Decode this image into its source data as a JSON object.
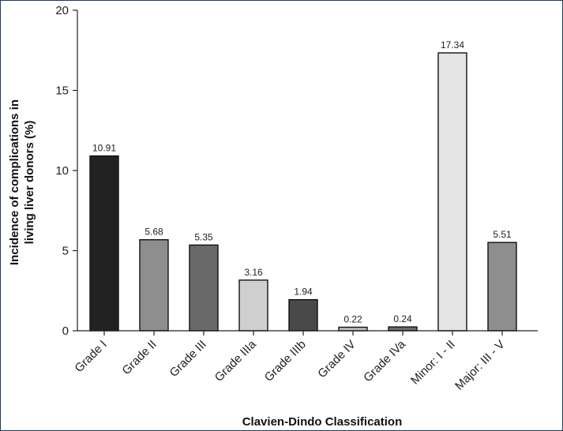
{
  "chart_data": {
    "type": "bar",
    "title": "",
    "xlabel": "Clavien-Dindo Classification",
    "ylabel_lines": [
      "Incidence of complications in",
      "living liver donors (%)"
    ],
    "categories": [
      "Grade I",
      "Grade II",
      "Grade III",
      "Grade IIIa",
      "Grade IIIb",
      "Grade IV",
      "Grade IVa",
      "Minor: I - II",
      "Major: III - V"
    ],
    "values": [
      10.91,
      5.68,
      5.35,
      3.16,
      1.94,
      0.22,
      0.24,
      17.34,
      5.51
    ],
    "value_labels": [
      "10.91",
      "5.68",
      "5.35",
      "3.16",
      "1.94",
      "0.22",
      "0.24",
      "17.34",
      "5.51"
    ],
    "bar_colors": [
      "#222222",
      "#8e8e8e",
      "#6a6a6a",
      "#cfcfcf",
      "#494949",
      "#bdbdbd",
      "#6a6a6a",
      "#e4e4e4",
      "#8e8e8e"
    ],
    "ylim": [
      0,
      20
    ],
    "yticks": [
      0,
      5,
      10,
      15,
      20
    ],
    "ytick_labels": [
      "0",
      "5",
      "10",
      "15",
      "20"
    ],
    "grid": false,
    "legend": "none"
  }
}
